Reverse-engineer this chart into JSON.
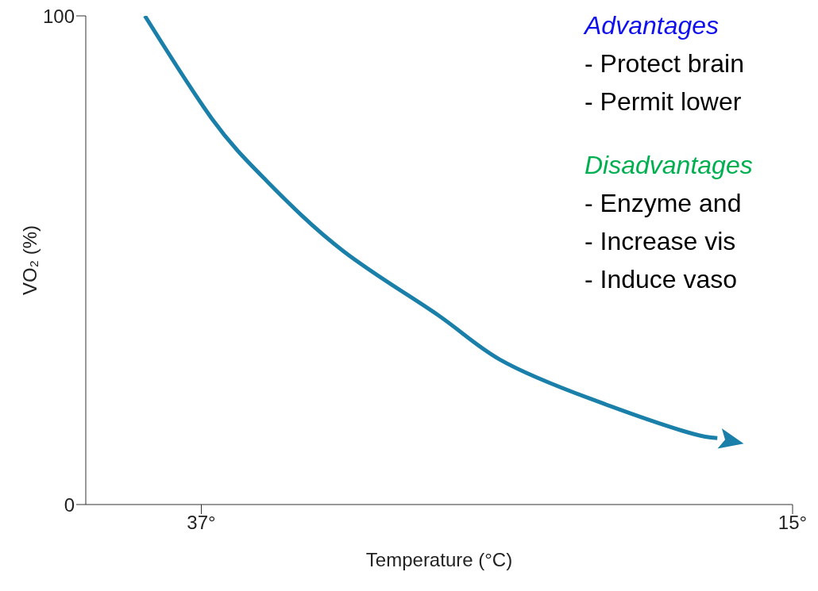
{
  "chart_data": {
    "type": "line",
    "xlabel": "Temperature (°C)",
    "ylabel": "VO₂ (%)",
    "x": [
      39.1,
      36.6,
      34.6,
      31.7,
      28.2,
      25.9,
      22.5,
      19.1,
      17.8
    ],
    "series": [
      {
        "color": "#1a80aa",
        "values": [
          100,
          78.9,
          66.4,
          51.8,
          38.8,
          29.7,
          21.6,
          15.1,
          13.6
        ]
      }
    ],
    "xlim": [
      41.3,
      15
    ],
    "xticks": [
      {
        "value": 37,
        "label": "37°"
      },
      {
        "value": 15,
        "label": "15°"
      }
    ],
    "ylim": [
      0,
      100
    ],
    "yticks": [
      0,
      100
    ],
    "marker": "none",
    "line_style": "solid",
    "grid": false,
    "legend": false,
    "annotations": [
      "Advantages",
      "- Protect brain",
      "- Permit lower",
      "Disadvantages",
      "- Enzyme and",
      "- Increase vis",
      "- Induce vaso"
    ]
  }
}
